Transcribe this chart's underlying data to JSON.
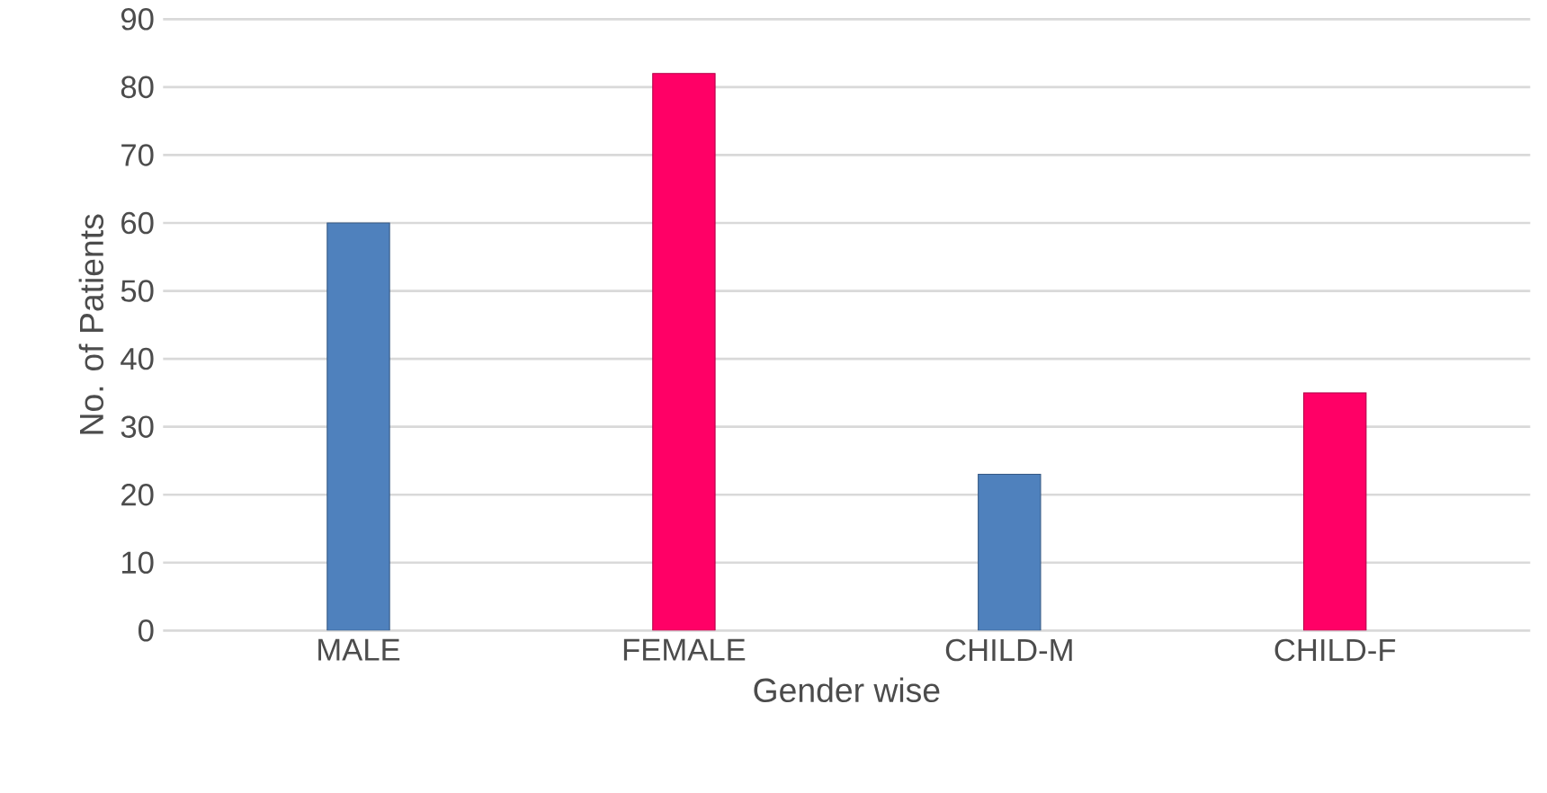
{
  "chart_data": {
    "type": "bar",
    "xlabel": "Gender wise",
    "ylabel": "No. of Patients",
    "categories": [
      "MALE",
      "FEMALE",
      "CHILD-M",
      "CHILD-F"
    ],
    "values": [
      60,
      82,
      23,
      35
    ],
    "colors": [
      "#4f81bd",
      "#ff0066",
      "#4f81bd",
      "#ff0066"
    ],
    "ylim": [
      0,
      90
    ],
    "yticks": [
      0,
      10,
      20,
      30,
      40,
      50,
      60,
      70,
      80,
      90
    ],
    "grid": "y"
  }
}
